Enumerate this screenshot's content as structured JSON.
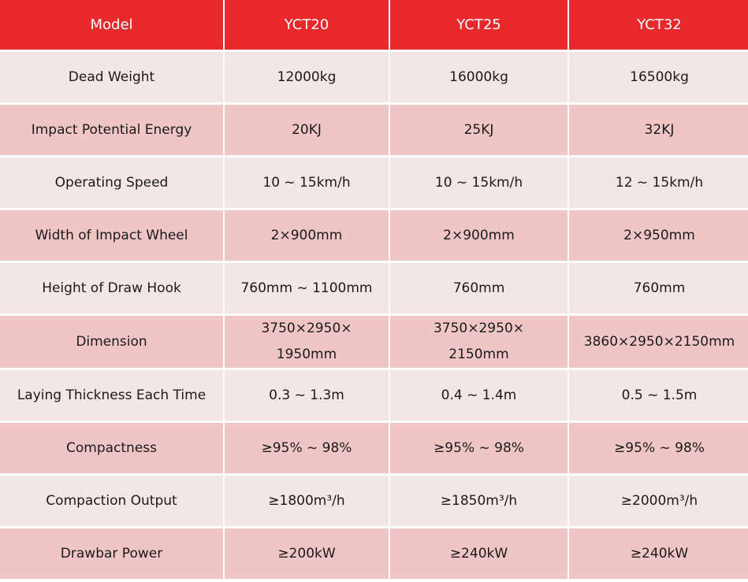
{
  "header": [
    "Model",
    "YCT20",
    "YCT25",
    "YCT32"
  ],
  "rows": [
    [
      "Dead Weight",
      "12000kg",
      "16000kg",
      "16500kg"
    ],
    [
      "Impact Potential Energy",
      "20KJ",
      "25KJ",
      "32KJ"
    ],
    [
      "Operating Speed",
      "10 ~ 15km/h",
      "10 ~ 15km/h",
      "12 ~ 15km/h"
    ],
    [
      "Width of Impact Wheel",
      "2×900mm",
      "2×900mm",
      "2×950mm"
    ],
    [
      "Height of Draw Hook",
      "760mm ~ 1100mm",
      "760mm",
      "760mm"
    ],
    [
      "Dimension",
      "3750×2950×\n1950mm",
      "3750×2950×\n2150mm",
      "3860×2950×2150mm"
    ],
    [
      "Laying Thickness Each Time",
      "0.3 ~ 1.3m",
      "0.4 ~ 1.4m",
      "0.5 ~ 1.5m"
    ],
    [
      "Compactness",
      "≥95% ~ 98%",
      "≥95% ~ 98%",
      "≥95% ~ 98%"
    ],
    [
      "Compaction Output",
      "≥1800m³/h",
      "≥1850m³/h",
      "≥2000m³/h"
    ],
    [
      "Drawbar Power",
      "≥200kW",
      "≥240kW",
      "≥240kW"
    ]
  ],
  "colors": {
    "header": "#e8282a",
    "row_light": "#f3e6e6",
    "row_dark": "#efc5c6"
  }
}
